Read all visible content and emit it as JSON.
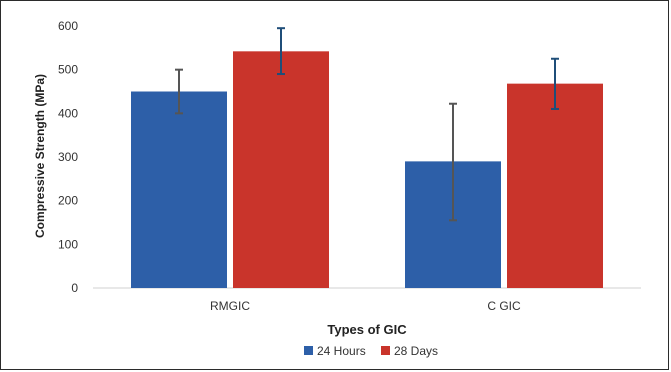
{
  "chart_data": {
    "type": "bar",
    "xlabel": "Types of GIC",
    "ylabel": "Compressive Strength (MPa)",
    "categories": [
      "RMGIC",
      "C GIC"
    ],
    "ylim": [
      0,
      600
    ],
    "yticks": [
      0,
      100,
      200,
      300,
      400,
      500,
      600
    ],
    "legend_position": "bottom",
    "grid": false,
    "series": [
      {
        "name": "24 Hours",
        "color": "#2d5fa8",
        "values": [
          450,
          290
        ],
        "error_low": [
          400,
          155
        ],
        "error_high": [
          500,
          422
        ]
      },
      {
        "name": "28 Days",
        "color": "#c9342b",
        "values": [
          542,
          468
        ],
        "error_low": [
          490,
          410
        ],
        "error_high": [
          595,
          525
        ]
      }
    ],
    "error_bar_colors": [
      "#555555",
      "#1f4e79"
    ]
  }
}
